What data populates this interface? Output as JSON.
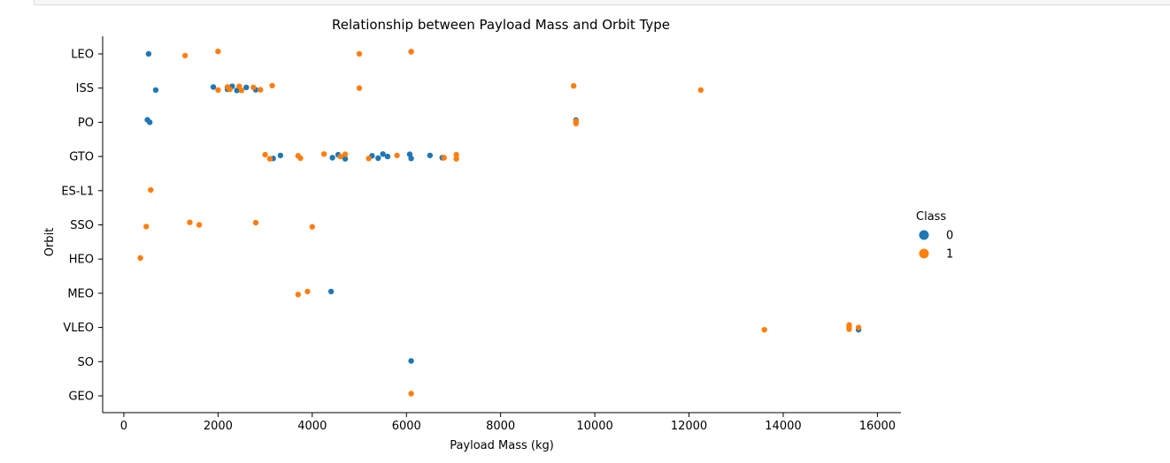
{
  "chart_data": {
    "type": "scatter",
    "title": "Relationship between Payload Mass and Orbit Type",
    "xlabel": "Payload Mass (kg)",
    "ylabel": "Orbit",
    "xlim": [
      -450,
      16500
    ],
    "xticks": [
      0,
      2000,
      4000,
      6000,
      8000,
      10000,
      12000,
      14000,
      16000
    ],
    "xtick_labels": [
      "0",
      "2000",
      "4000",
      "6000",
      "8000",
      "10000",
      "12000",
      "14000",
      "16000"
    ],
    "categories": [
      "LEO",
      "ISS",
      "PO",
      "GTO",
      "ES-L1",
      "SSO",
      "HEO",
      "MEO",
      "VLEO",
      "SO",
      "GEO"
    ],
    "legend": {
      "title": "Class",
      "placement": "right",
      "entries": [
        "0",
        "1"
      ]
    },
    "colors": {
      "0": "#1f77b4",
      "1": "#ff7f0e"
    },
    "series": [
      {
        "name": "0",
        "points": [
          [
            525,
            "LEO"
          ],
          [
            6100,
            "LEO"
          ],
          [
            677,
            "ISS"
          ],
          [
            1900,
            "ISS"
          ],
          [
            2200,
            "ISS"
          ],
          [
            2300,
            "ISS"
          ],
          [
            2400,
            "ISS"
          ],
          [
            2600,
            "ISS"
          ],
          [
            2800,
            "ISS"
          ],
          [
            500,
            "PO"
          ],
          [
            550,
            "PO"
          ],
          [
            9600,
            "PO"
          ],
          [
            3170,
            "GTO"
          ],
          [
            3325,
            "GTO"
          ],
          [
            4428,
            "GTO"
          ],
          [
            4550,
            "GTO"
          ],
          [
            4700,
            "GTO"
          ],
          [
            5270,
            "GTO"
          ],
          [
            5400,
            "GTO"
          ],
          [
            5500,
            "GTO"
          ],
          [
            5600,
            "GTO"
          ],
          [
            6070,
            "GTO"
          ],
          [
            6100,
            "GTO"
          ],
          [
            6500,
            "GTO"
          ],
          [
            6760,
            "GTO"
          ],
          [
            4400,
            "MEO"
          ],
          [
            15600,
            "VLEO"
          ],
          [
            6100,
            "SO"
          ]
        ]
      },
      {
        "name": "1",
        "points": [
          [
            1300,
            "LEO"
          ],
          [
            2000,
            "LEO"
          ],
          [
            5000,
            "LEO"
          ],
          [
            6100,
            "LEO"
          ],
          [
            2000,
            "ISS"
          ],
          [
            2200,
            "ISS"
          ],
          [
            2250,
            "ISS"
          ],
          [
            2450,
            "ISS"
          ],
          [
            2500,
            "ISS"
          ],
          [
            2750,
            "ISS"
          ],
          [
            2900,
            "ISS"
          ],
          [
            3150,
            "ISS"
          ],
          [
            5000,
            "ISS"
          ],
          [
            9550,
            "ISS"
          ],
          [
            12250,
            "ISS"
          ],
          [
            9600,
            "PO"
          ],
          [
            9600,
            "PO"
          ],
          [
            3000,
            "GTO"
          ],
          [
            3100,
            "GTO"
          ],
          [
            3700,
            "GTO"
          ],
          [
            3750,
            "GTO"
          ],
          [
            4250,
            "GTO"
          ],
          [
            4600,
            "GTO"
          ],
          [
            4700,
            "GTO"
          ],
          [
            5200,
            "GTO"
          ],
          [
            5800,
            "GTO"
          ],
          [
            6800,
            "GTO"
          ],
          [
            7060,
            "GTO"
          ],
          [
            7060,
            "GTO"
          ],
          [
            570,
            "ES-L1"
          ],
          [
            475,
            "SSO"
          ],
          [
            1400,
            "SSO"
          ],
          [
            1600,
            "SSO"
          ],
          [
            2800,
            "SSO"
          ],
          [
            4000,
            "SSO"
          ],
          [
            350,
            "HEO"
          ],
          [
            3700,
            "MEO"
          ],
          [
            3900,
            "MEO"
          ],
          [
            13600,
            "VLEO"
          ],
          [
            15400,
            "VLEO"
          ],
          [
            15400,
            "VLEO"
          ],
          [
            15400,
            "VLEO"
          ],
          [
            15600,
            "VLEO"
          ],
          [
            6100,
            "GEO"
          ]
        ]
      }
    ]
  }
}
